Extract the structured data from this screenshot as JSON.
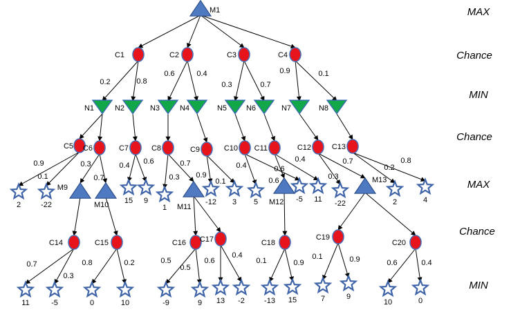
{
  "levels": [
    "MAX",
    "Chance",
    "MIN",
    "Chance",
    "MAX",
    "Chance",
    "MIN"
  ],
  "nodes": [
    {
      "id": "M1",
      "type": "max",
      "label": "M1"
    },
    {
      "id": "C1",
      "type": "chance",
      "label": "C1"
    },
    {
      "id": "C2",
      "type": "chance",
      "label": "C2"
    },
    {
      "id": "C3",
      "type": "chance",
      "label": "C3"
    },
    {
      "id": "C4",
      "type": "chance",
      "label": "C4"
    },
    {
      "id": "N1",
      "type": "min",
      "label": "N1"
    },
    {
      "id": "N2",
      "type": "min",
      "label": "N2"
    },
    {
      "id": "N3",
      "type": "min",
      "label": "N3"
    },
    {
      "id": "N4",
      "type": "min",
      "label": "N4"
    },
    {
      "id": "N5",
      "type": "min",
      "label": "N5"
    },
    {
      "id": "N6",
      "type": "min",
      "label": "N6"
    },
    {
      "id": "N7",
      "type": "min",
      "label": "N7"
    },
    {
      "id": "N8",
      "type": "min",
      "label": "N8"
    },
    {
      "id": "C5",
      "type": "chance",
      "label": "C5"
    },
    {
      "id": "C6",
      "type": "chance",
      "label": "C6"
    },
    {
      "id": "C7",
      "type": "chance",
      "label": "C7"
    },
    {
      "id": "C8",
      "type": "chance",
      "label": "C8"
    },
    {
      "id": "C9",
      "type": "chance",
      "label": "C9"
    },
    {
      "id": "C10",
      "type": "chance",
      "label": "C10"
    },
    {
      "id": "C11",
      "type": "chance",
      "label": "C11"
    },
    {
      "id": "C12",
      "type": "chance",
      "label": "C12"
    },
    {
      "id": "C13",
      "type": "chance",
      "label": "C13"
    },
    {
      "id": "M9",
      "type": "max",
      "label": "M9"
    },
    {
      "id": "M10",
      "type": "max",
      "label": "M10"
    },
    {
      "id": "M11",
      "type": "max",
      "label": "M11"
    },
    {
      "id": "M12",
      "type": "max",
      "label": "M12"
    },
    {
      "id": "M13",
      "type": "max",
      "label": "M13"
    },
    {
      "id": "C14",
      "type": "chance",
      "label": "C14"
    },
    {
      "id": "C15",
      "type": "chance",
      "label": "C15"
    },
    {
      "id": "C16",
      "type": "chance",
      "label": "C16"
    },
    {
      "id": "C17",
      "type": "chance",
      "label": "C17"
    },
    {
      "id": "C18",
      "type": "chance",
      "label": "C18"
    },
    {
      "id": "C19",
      "type": "chance",
      "label": "C19"
    },
    {
      "id": "C20",
      "type": "chance",
      "label": "C20"
    },
    {
      "id": "L1",
      "type": "leaf",
      "label": "2"
    },
    {
      "id": "L2",
      "type": "leaf",
      "label": "-22"
    },
    {
      "id": "L3",
      "type": "leaf",
      "label": "15"
    },
    {
      "id": "L4",
      "type": "leaf",
      "label": "9"
    },
    {
      "id": "L5",
      "type": "leaf",
      "label": "1"
    },
    {
      "id": "L6",
      "type": "leaf",
      "label": "-12"
    },
    {
      "id": "L7",
      "type": "leaf",
      "label": "3"
    },
    {
      "id": "L8",
      "type": "leaf",
      "label": "5"
    },
    {
      "id": "L9",
      "type": "leaf",
      "label": "-5"
    },
    {
      "id": "L10",
      "type": "leaf",
      "label": "11"
    },
    {
      "id": "L11",
      "type": "leaf",
      "label": "-22"
    },
    {
      "id": "L12",
      "type": "leaf",
      "label": "2"
    },
    {
      "id": "L13",
      "type": "leaf",
      "label": "4"
    },
    {
      "id": "L14",
      "type": "leaf",
      "label": "11"
    },
    {
      "id": "L15",
      "type": "leaf",
      "label": "-5"
    },
    {
      "id": "L16",
      "type": "leaf",
      "label": "0"
    },
    {
      "id": "L17",
      "type": "leaf",
      "label": "10"
    },
    {
      "id": "L18",
      "type": "leaf",
      "label": "-9"
    },
    {
      "id": "L19",
      "type": "leaf",
      "label": "9"
    },
    {
      "id": "L20",
      "type": "leaf",
      "label": "13"
    },
    {
      "id": "L21",
      "type": "leaf",
      "label": "-2"
    },
    {
      "id": "L22",
      "type": "leaf",
      "label": "-13"
    },
    {
      "id": "L23",
      "type": "leaf",
      "label": "15"
    },
    {
      "id": "L24",
      "type": "leaf",
      "label": "7"
    },
    {
      "id": "L25",
      "type": "leaf",
      "label": "9"
    },
    {
      "id": "L26",
      "type": "leaf",
      "label": "10"
    },
    {
      "id": "L27",
      "type": "leaf",
      "label": "0"
    }
  ],
  "edges": [
    {
      "from": "M1",
      "to": "C1",
      "label": ""
    },
    {
      "from": "M1",
      "to": "C2",
      "label": ""
    },
    {
      "from": "M1",
      "to": "C3",
      "label": ""
    },
    {
      "from": "M1",
      "to": "C4",
      "label": ""
    },
    {
      "from": "C1",
      "to": "N1",
      "label": "0.2"
    },
    {
      "from": "C1",
      "to": "N2",
      "label": "0.8"
    },
    {
      "from": "C2",
      "to": "N3",
      "label": "0.6"
    },
    {
      "from": "C2",
      "to": "N4",
      "label": "0.4"
    },
    {
      "from": "C3",
      "to": "N5",
      "label": "0.3"
    },
    {
      "from": "C3",
      "to": "N6",
      "label": "0.7"
    },
    {
      "from": "C4",
      "to": "N7",
      "label": "0.9"
    },
    {
      "from": "C4",
      "to": "N8",
      "label": "0.1"
    },
    {
      "from": "N1",
      "to": "C5",
      "label": ""
    },
    {
      "from": "N1",
      "to": "C6",
      "label": ""
    },
    {
      "from": "N2",
      "to": "C7",
      "label": ""
    },
    {
      "from": "N3",
      "to": "C8",
      "label": ""
    },
    {
      "from": "N4",
      "to": "C9",
      "label": ""
    },
    {
      "from": "N5",
      "to": "C10",
      "label": ""
    },
    {
      "from": "N6",
      "to": "C11",
      "label": ""
    },
    {
      "from": "N7",
      "to": "C12",
      "label": ""
    },
    {
      "from": "N8",
      "to": "C13",
      "label": ""
    },
    {
      "from": "C5",
      "to": "L1",
      "label": "0.9"
    },
    {
      "from": "C5",
      "to": "L2",
      "label": "0.1"
    },
    {
      "from": "C6",
      "to": "M9",
      "label": "0.3"
    },
    {
      "from": "C6",
      "to": "M10",
      "label": "0.7"
    },
    {
      "from": "C7",
      "to": "L3",
      "label": "0.4"
    },
    {
      "from": "C7",
      "to": "L4",
      "label": "0.6"
    },
    {
      "from": "C8",
      "to": "L5",
      "label": "0.3"
    },
    {
      "from": "C8",
      "to": "M11",
      "label": "0.7"
    },
    {
      "from": "C9",
      "to": "L6",
      "label": "0.9"
    },
    {
      "from": "C9",
      "to": "L7",
      "label": "0.1"
    },
    {
      "from": "C10",
      "to": "L8",
      "label": "0.4"
    },
    {
      "from": "C10",
      "to": "L9",
      "label": "0.6"
    },
    {
      "from": "C11",
      "to": "M12",
      "label": "0.6"
    },
    {
      "from": "C11",
      "to": "L10",
      "label": "0.4"
    },
    {
      "from": "C12",
      "to": "L11",
      "label": "0.3"
    },
    {
      "from": "C12",
      "to": "M13",
      "label": "0.7"
    },
    {
      "from": "C13",
      "to": "L12",
      "label": "0.2"
    },
    {
      "from": "C13",
      "to": "L13",
      "label": "0.8"
    },
    {
      "from": "M9",
      "to": "C14",
      "label": ""
    },
    {
      "from": "M10",
      "to": "C15",
      "label": ""
    },
    {
      "from": "M11",
      "to": "C16",
      "label": ""
    },
    {
      "from": "M11",
      "to": "C17",
      "label": ""
    },
    {
      "from": "M12",
      "to": "C18",
      "label": ""
    },
    {
      "from": "M13",
      "to": "C19",
      "label": ""
    },
    {
      "from": "M13",
      "to": "C20",
      "label": ""
    },
    {
      "from": "C14",
      "to": "L14",
      "label": "0.7"
    },
    {
      "from": "C14",
      "to": "L15",
      "label": "0.3"
    },
    {
      "from": "C15",
      "to": "L16",
      "label": "0.8"
    },
    {
      "from": "C15",
      "to": "L17",
      "label": "0.2"
    },
    {
      "from": "C16",
      "to": "L18",
      "label": "0.5"
    },
    {
      "from": "C16",
      "to": "L19",
      "label": "0.5"
    },
    {
      "from": "C17",
      "to": "L20",
      "label": "0.6"
    },
    {
      "from": "C17",
      "to": "L21",
      "label": "0.4"
    },
    {
      "from": "C18",
      "to": "L22",
      "label": "0.1"
    },
    {
      "from": "C18",
      "to": "L23",
      "label": "0.9"
    },
    {
      "from": "C19",
      "to": "L24",
      "label": "0.1"
    },
    {
      "from": "C19",
      "to": "L25",
      "label": "0.9"
    },
    {
      "from": "C20",
      "to": "L26",
      "label": "0.6"
    },
    {
      "from": "C20",
      "to": "L27",
      "label": "0.4"
    }
  ]
}
